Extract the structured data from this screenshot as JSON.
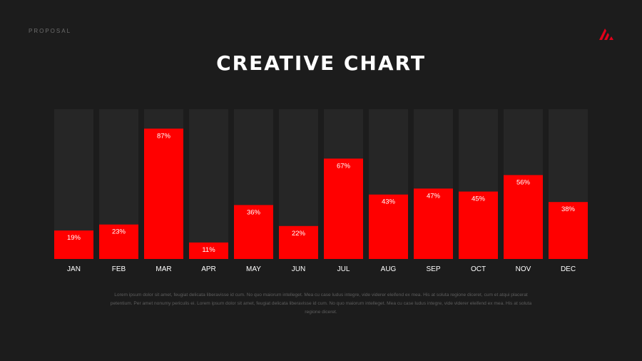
{
  "header": {
    "label": "PROPOSAL",
    "title": "CREATIVE CHART"
  },
  "logo": {
    "icon": "slash-logo-icon",
    "color": "#e2001a"
  },
  "colors": {
    "background": "#1c1c1c",
    "track": "#262626",
    "bar": "#ff0000",
    "text": "#ffffff"
  },
  "chart_data": {
    "type": "bar",
    "title": "CREATIVE CHART",
    "categories": [
      "JAN",
      "FEB",
      "MAR",
      "APR",
      "MAY",
      "JUN",
      "JUL",
      "AUG",
      "SEP",
      "OCT",
      "NOV",
      "DEC"
    ],
    "values": [
      19,
      23,
      87,
      11,
      36,
      22,
      67,
      43,
      47,
      45,
      56,
      38
    ],
    "data_labels": [
      "19%",
      "23%",
      "87%",
      "11%",
      "36%",
      "22%",
      "67%",
      "43%",
      "47%",
      "45%",
      "56%",
      "38%"
    ],
    "ylim": [
      0,
      100
    ],
    "xlabel": "",
    "ylabel": "",
    "grid": false
  },
  "footer": {
    "text": "Lorem ipsum dolor sit amet, feugiat delicata liberavisse id cum. No quo maiorum intelleget. Mea cu case ludus integre, vide viderer eleifend ex mea. His at soluta regione diceret, cum et atqui placerat petentium. Per amet nonumy periculis ei. Lorem ipsum dolor sit amet, feugiat delicata liberavisse id cum. No quo maiorum intelleget. Mea cu case ludus integre, vide viderer eleifend ex mea. His at soluta regione diceret."
  }
}
